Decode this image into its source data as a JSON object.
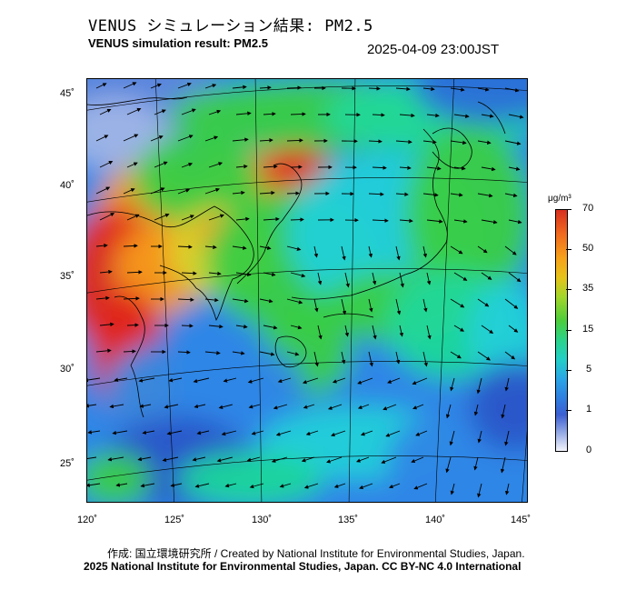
{
  "header": {
    "title_jp": "VENUS シミュレーション結果: PM2.5",
    "title_en": "VENUS simulation result: PM2.5",
    "timestamp": "2025-04-09 23:00JST"
  },
  "map": {
    "lat_labels": [
      "45˚",
      "40˚",
      "35˚",
      "30˚",
      "25˚"
    ],
    "lon_labels": [
      "120˚",
      "125˚",
      "130˚",
      "135˚",
      "140˚",
      "145˚"
    ],
    "colors": {
      "deep_blue": "#2a55c8",
      "blue": "#2f86e6",
      "cyan": "#23d0d8",
      "teal": "#1fd79a",
      "green": "#39cd45",
      "yellow": "#d8d52a",
      "orange": "#f59a1c",
      "red": "#e0281e"
    }
  },
  "colorbar": {
    "unit": "μg/m³",
    "labels": [
      "70",
      "50",
      "35",
      "15",
      "5",
      "1",
      "0"
    ]
  },
  "footer": {
    "credit_jp": "作成: 国立環境研究所 / Created by National Institute for Environmental Studies, Japan.",
    "credit_en": "2025 National Institute for Environmental Studies, Japan. CC BY-NC 4.0 International"
  }
}
